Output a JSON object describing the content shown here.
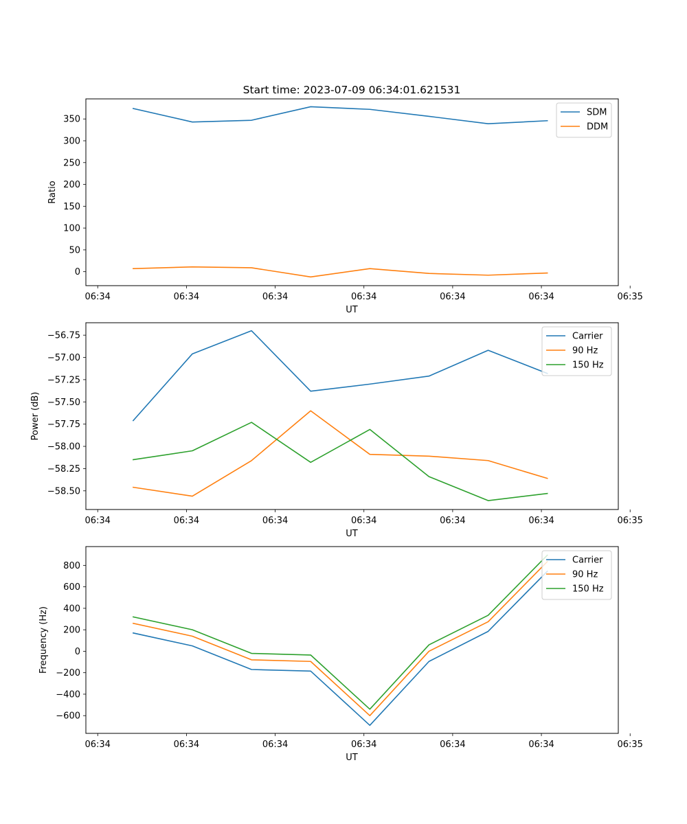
{
  "figure": {
    "title": "Start time: 2023-07-09 06:34:01.621531"
  },
  "chart_data": [
    {
      "type": "line",
      "title": "Start time: 2023-07-09 06:34:01.621531",
      "xlabel": "UT",
      "ylabel": "Ratio",
      "x": [
        1,
        2,
        3,
        4,
        5,
        6,
        7,
        8
      ],
      "xlim": [
        0.2,
        9.2
      ],
      "x_ticks": [
        0.4,
        1.9,
        3.4,
        4.9,
        6.4,
        7.9,
        9.4
      ],
      "x_tick_labels": [
        "06:34",
        "06:34",
        "06:34",
        "06:34",
        "06:34",
        "06:34",
        "06:35"
      ],
      "ylim": [
        -32,
        396
      ],
      "y_ticks": [
        0,
        50,
        100,
        150,
        200,
        250,
        300,
        350
      ],
      "y_tick_labels": [
        "0",
        "50",
        "100",
        "150",
        "200",
        "250",
        "300",
        "350"
      ],
      "legend_position": "upper-right",
      "series": [
        {
          "name": "SDM",
          "color": "#1f77b4",
          "values": [
            374,
            343,
            347,
            378,
            372,
            356,
            339,
            346
          ]
        },
        {
          "name": "DDM",
          "color": "#ff7f0e",
          "values": [
            7,
            11,
            9,
            -12,
            7,
            -4,
            -8,
            -3
          ]
        }
      ]
    },
    {
      "type": "line",
      "title": "",
      "xlabel": "UT",
      "ylabel": "Power (dB)",
      "x": [
        1,
        2,
        3,
        4,
        5,
        6,
        7,
        8
      ],
      "xlim": [
        0.2,
        9.2
      ],
      "x_ticks": [
        0.4,
        1.9,
        3.4,
        4.9,
        6.4,
        7.9,
        9.4
      ],
      "x_tick_labels": [
        "06:34",
        "06:34",
        "06:34",
        "06:34",
        "06:34",
        "06:34",
        "06:35"
      ],
      "ylim": [
        -58.71,
        -56.61
      ],
      "y_ticks": [
        -58.5,
        -58.25,
        -58.0,
        -57.75,
        -57.5,
        -57.25,
        -57.0,
        -56.75
      ],
      "y_tick_labels": [
        "−58.50",
        "−58.25",
        "−58.00",
        "−57.75",
        "−57.50",
        "−57.25",
        "−57.00",
        "−56.75"
      ],
      "legend_position": "upper-right",
      "series": [
        {
          "name": "Carrier",
          "color": "#1f77b4",
          "values": [
            -57.71,
            -56.96,
            -56.7,
            -57.38,
            -57.3,
            -57.21,
            -56.92,
            -57.18
          ]
        },
        {
          "name": "90 Hz",
          "color": "#ff7f0e",
          "values": [
            -58.46,
            -58.56,
            -58.16,
            -57.6,
            -58.09,
            -58.11,
            -58.16,
            -58.36
          ]
        },
        {
          "name": "150 Hz",
          "color": "#2ca02c",
          "values": [
            -58.15,
            -58.05,
            -57.73,
            -58.18,
            -57.81,
            -58.34,
            -58.61,
            -58.53
          ]
        }
      ]
    },
    {
      "type": "line",
      "title": "",
      "xlabel": "UT",
      "ylabel": "Frequency (Hz)",
      "x": [
        1,
        2,
        3,
        4,
        5,
        6,
        7,
        8
      ],
      "xlim": [
        0.2,
        9.2
      ],
      "x_ticks": [
        0.4,
        1.9,
        3.4,
        4.9,
        6.4,
        7.9,
        9.4
      ],
      "x_tick_labels": [
        "06:34",
        "06:34",
        "06:34",
        "06:34",
        "06:34",
        "06:34",
        "06:35"
      ],
      "ylim": [
        -765,
        975
      ],
      "y_ticks": [
        -600,
        -400,
        -200,
        0,
        200,
        400,
        600,
        800
      ],
      "y_tick_labels": [
        "−600",
        "−400",
        "−200",
        "0",
        "200",
        "400",
        "600",
        "800"
      ],
      "legend_position": "upper-right",
      "series": [
        {
          "name": "Carrier",
          "color": "#1f77b4",
          "values": [
            170,
            50,
            -170,
            -185,
            -690,
            -95,
            185,
            745
          ]
        },
        {
          "name": "90 Hz",
          "color": "#ff7f0e",
          "values": [
            260,
            140,
            -80,
            -95,
            -600,
            0,
            275,
            835
          ]
        },
        {
          "name": "150 Hz",
          "color": "#2ca02c",
          "values": [
            320,
            200,
            -20,
            -35,
            -540,
            60,
            335,
            895
          ]
        }
      ]
    }
  ]
}
